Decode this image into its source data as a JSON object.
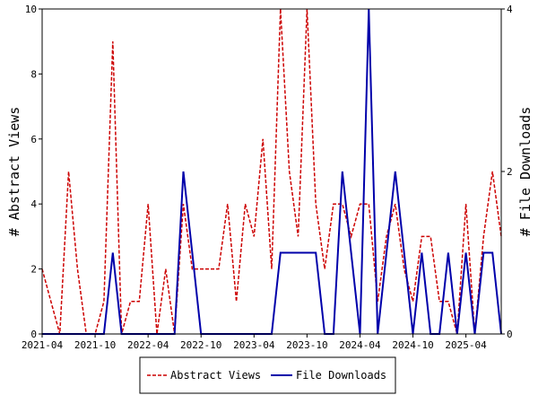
{
  "chart_data": {
    "type": "line",
    "x": [
      "2021-04",
      "2021-05",
      "2021-06",
      "2021-07",
      "2021-08",
      "2021-09",
      "2021-10",
      "2021-11",
      "2021-12",
      "2022-01",
      "2022-02",
      "2022-03",
      "2022-04",
      "2022-05",
      "2022-06",
      "2022-07",
      "2022-08",
      "2022-09",
      "2022-10",
      "2022-11",
      "2022-12",
      "2023-01",
      "2023-02",
      "2023-03",
      "2023-04",
      "2023-05",
      "2023-06",
      "2023-07",
      "2023-08",
      "2023-09",
      "2023-10",
      "2023-11",
      "2023-12",
      "2024-01",
      "2024-02",
      "2024-03",
      "2024-04",
      "2024-05",
      "2024-06",
      "2024-07",
      "2024-08",
      "2024-09",
      "2024-10",
      "2024-11",
      "2024-12",
      "2025-01",
      "2025-02",
      "2025-03",
      "2025-04",
      "2025-05",
      "2025-06",
      "2025-07",
      "2025-08"
    ],
    "x_ticks": [
      "2021-04",
      "2021-10",
      "2022-04",
      "2022-10",
      "2023-04",
      "2023-10",
      "2024-04",
      "2024-10",
      "2025-04"
    ],
    "series": [
      {
        "name": "Abstract Views",
        "axis": "left",
        "color": "#cc0000",
        "style": "dashed",
        "values": [
          2,
          1,
          0,
          5,
          2,
          0,
          0,
          1,
          9,
          0,
          1,
          1,
          4,
          0,
          2,
          0,
          4,
          2,
          2,
          2,
          2,
          4,
          1,
          4,
          3,
          6,
          2,
          10,
          5,
          3,
          10,
          4,
          2,
          4,
          4,
          3,
          4,
          4,
          1,
          3,
          4,
          2,
          1,
          3,
          3,
          1,
          1,
          0,
          4,
          0,
          3,
          5,
          3
        ]
      },
      {
        "name": "File Downloads",
        "axis": "right",
        "color": "#0000aa",
        "style": "solid",
        "values": [
          0,
          0,
          0,
          0,
          0,
          0,
          0,
          0,
          1,
          0,
          0,
          0,
          0,
          0,
          0,
          0,
          2,
          1,
          0,
          0,
          0,
          0,
          0,
          0,
          0,
          0,
          0,
          1,
          1,
          1,
          1,
          1,
          0,
          0,
          2,
          1,
          0,
          4,
          0,
          1,
          2,
          1,
          0,
          1,
          0,
          0,
          1,
          0,
          1,
          0,
          1,
          1,
          0
        ]
      }
    ],
    "ylabel": "# Abstract Views",
    "y2label": "# File Downloads",
    "ylim": [
      0,
      10
    ],
    "y2lim": [
      0,
      4
    ],
    "yticks": [
      "0",
      "2",
      "4",
      "6",
      "8",
      "10"
    ],
    "y2ticks": [
      "0",
      "2",
      "4"
    ],
    "grid": false,
    "legend_position": "bottom"
  }
}
